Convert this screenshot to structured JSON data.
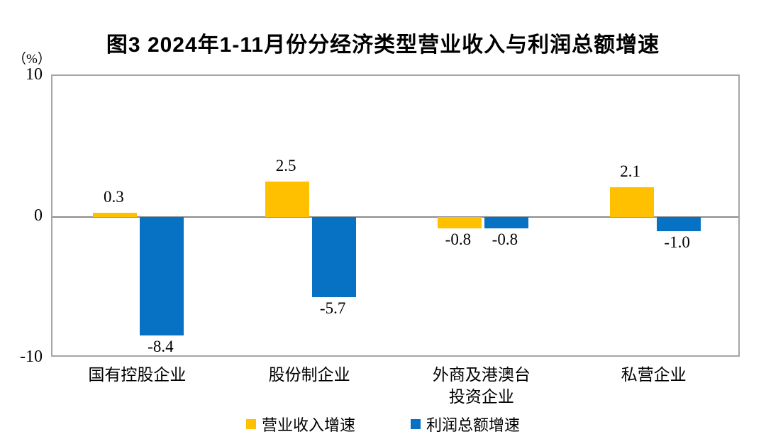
{
  "figure": {
    "title": "图3  2024年1-11月份分经济类型营业收入与利润总额增速",
    "unit_label": "（%）"
  },
  "chart_data": {
    "type": "bar",
    "title": "图3  2024年1-11月份分经济类型营业收入与利润总额增速",
    "unit": "%",
    "categories": [
      "国有控股企业",
      "股份制企业",
      "外商及港澳台\n投资企业",
      "私营企业"
    ],
    "series": [
      {
        "name": "营业收入增速",
        "color": "#FFC000",
        "values": [
          0.3,
          2.5,
          -0.8,
          2.1
        ]
      },
      {
        "name": "利润总额增速",
        "color": "#0772C4",
        "values": [
          -8.4,
          -5.7,
          -0.8,
          -1.0
        ]
      }
    ],
    "data_labels": {
      "营业收入增速": [
        "0.3",
        "2.5",
        "-0.8",
        "2.1"
      ],
      "利润总额增速": [
        "-8.4",
        "-5.7",
        "-0.8",
        "-1.0"
      ]
    },
    "ylim": [
      -10,
      10
    ],
    "yticks": [
      "10",
      "0",
      "-10"
    ],
    "ytick_values": [
      10,
      0,
      -10
    ],
    "grid": "zero-line-only",
    "legend_position": "bottom-center"
  }
}
